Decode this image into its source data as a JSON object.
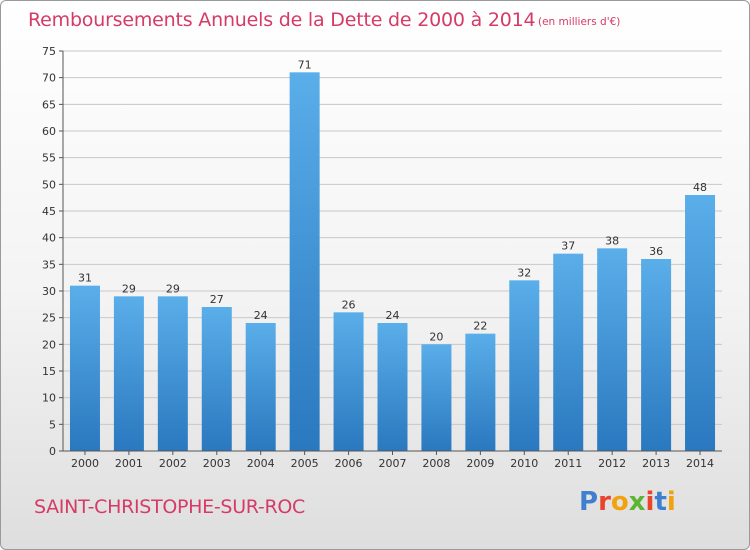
{
  "header": {
    "title": "Remboursements Annuels de la Dette de 2000 à 2014",
    "unit_note": "(en milliers d'€)"
  },
  "footer": {
    "commune": "SAINT-CHRISTOPHE-SUR-ROC",
    "logo_text": "Proxiti"
  },
  "colors": {
    "title": "#d63a66",
    "bar_top": "#5aaee9",
    "bar_bottom": "#2a78bf",
    "grid": "#c8c8c8",
    "axis": "#555555",
    "label": "#333333"
  },
  "chart_data": {
    "type": "bar",
    "title": "Remboursements Annuels de la Dette de 2000 à 2014",
    "subtitle": "(en milliers d'€)",
    "categories": [
      "2000",
      "2001",
      "2002",
      "2003",
      "2004",
      "2005",
      "2006",
      "2007",
      "2008",
      "2009",
      "2010",
      "2011",
      "2012",
      "2013",
      "2014"
    ],
    "values": [
      31,
      29,
      29,
      27,
      24,
      71,
      26,
      24,
      20,
      22,
      32,
      37,
      38,
      36,
      48
    ],
    "ylim": [
      0,
      75
    ],
    "yticks": [
      0,
      5,
      10,
      15,
      20,
      25,
      30,
      35,
      40,
      45,
      50,
      55,
      60,
      65,
      70,
      75
    ],
    "grid": true,
    "data_labels": true,
    "legend": "none"
  }
}
